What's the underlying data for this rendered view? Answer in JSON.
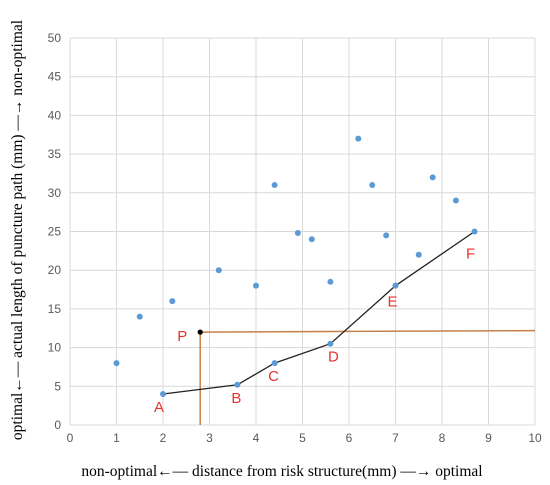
{
  "chart_data": {
    "type": "scatter",
    "title": "",
    "xlabel": "non-optimal←— distance from risk structure(mm) —→ optimal",
    "ylabel": "optimal←— actual length of puncture path (mm) —→ non-optimal",
    "xlim": [
      0,
      10
    ],
    "ylim": [
      0,
      50
    ],
    "x_ticks": [
      "0",
      "1",
      "2",
      "3",
      "4",
      "5",
      "6",
      "7",
      "8",
      "9",
      "10"
    ],
    "y_ticks": [
      "0",
      "5",
      "10",
      "15",
      "20",
      "25",
      "30",
      "35",
      "40",
      "45",
      "50"
    ],
    "grid": true,
    "points": [
      {
        "x": 1.0,
        "y": 8.0
      },
      {
        "x": 1.5,
        "y": 14.0
      },
      {
        "x": 2.0,
        "y": 4.0
      },
      {
        "x": 2.2,
        "y": 16.0
      },
      {
        "x": 3.2,
        "y": 20.0
      },
      {
        "x": 3.6,
        "y": 5.2
      },
      {
        "x": 4.0,
        "y": 18.0
      },
      {
        "x": 4.4,
        "y": 31.0
      },
      {
        "x": 4.4,
        "y": 8.0
      },
      {
        "x": 4.9,
        "y": 24.8
      },
      {
        "x": 5.2,
        "y": 24.0
      },
      {
        "x": 5.6,
        "y": 18.5
      },
      {
        "x": 5.6,
        "y": 10.5
      },
      {
        "x": 6.2,
        "y": 37.0
      },
      {
        "x": 6.5,
        "y": 31.0
      },
      {
        "x": 6.8,
        "y": 24.5
      },
      {
        "x": 7.0,
        "y": 18.0
      },
      {
        "x": 7.5,
        "y": 22.0
      },
      {
        "x": 7.8,
        "y": 32.0
      },
      {
        "x": 8.3,
        "y": 29.0
      },
      {
        "x": 8.7,
        "y": 25.0
      }
    ],
    "frontier": {
      "points": [
        {
          "label": "A",
          "x": 2.0,
          "y": 4.0
        },
        {
          "label": "B",
          "x": 3.6,
          "y": 5.2
        },
        {
          "label": "C",
          "x": 4.4,
          "y": 8.0
        },
        {
          "label": "D",
          "x": 5.6,
          "y": 10.5
        },
        {
          "label": "E",
          "x": 7.0,
          "y": 18.0
        },
        {
          "label": "F",
          "x": 8.7,
          "y": 25.0
        }
      ]
    },
    "query_point": {
      "label": "P",
      "x": 2.8,
      "y": 12.0
    },
    "colors": {
      "points": "#5b9bd5",
      "frontier_line": "#222222",
      "guide_lines": "#c5804a",
      "query_point": "#000000",
      "labels": "#e8322c",
      "grid": "#d9d9d9"
    }
  }
}
